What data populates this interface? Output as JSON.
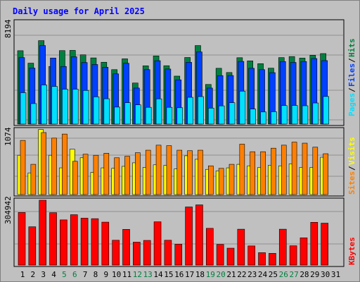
{
  "chart_data": [
    {
      "type": "bar",
      "title": "Daily usage for April 2025",
      "ylabel_top": "8194",
      "ylim": [
        0,
        10000
      ],
      "categories": [
        "1",
        "2",
        "3",
        "4",
        "5",
        "6",
        "7",
        "8",
        "9",
        "10",
        "11",
        "12",
        "13",
        "14",
        "15",
        "16",
        "17",
        "18",
        "19",
        "20",
        "21",
        "22",
        "23",
        "24",
        "25",
        "26",
        "27",
        "28",
        "29",
        "30",
        "31"
      ],
      "weekend_days": [
        "5",
        "6",
        "12",
        "13",
        "19",
        "20",
        "26",
        "27"
      ],
      "legend": [
        "Pages",
        "Files",
        "Hits"
      ],
      "series": [
        {
          "name": "Hits",
          "color": "#008040",
          "values": [
            7130,
            5920,
            8110,
            5600,
            7140,
            7160,
            6730,
            6430,
            6010,
            5290,
            6340,
            3990,
            5660,
            6620,
            5670,
            4660,
            6470,
            7630,
            3850,
            5420,
            5010,
            6450,
            6140,
            5870,
            5430,
            6460,
            6560,
            6410,
            6690,
            6850,
            0
          ]
        },
        {
          "name": "Files",
          "color": "#0040ff",
          "values": [
            6460,
            5440,
            7630,
            6420,
            5600,
            6540,
            5980,
            5790,
            5520,
            4880,
            5910,
            3500,
            5290,
            6160,
            5350,
            4300,
            6000,
            7010,
            3500,
            4710,
            4720,
            6090,
            5420,
            5290,
            5000,
            6080,
            5990,
            6080,
            6370,
            6170,
            0
          ]
        },
        {
          "name": "Pages",
          "color": "#00e0ff",
          "values": [
            3050,
            1990,
            3800,
            3660,
            3390,
            3390,
            3270,
            2650,
            2460,
            1650,
            2080,
            1870,
            1630,
            2450,
            1630,
            1590,
            2600,
            2670,
            1550,
            1770,
            2080,
            3200,
            1460,
            1180,
            1200,
            1800,
            1810,
            1780,
            2050,
            2680,
            0
          ]
        }
      ]
    },
    {
      "type": "bar",
      "legend": [
        "Sites",
        "Visits"
      ],
      "ylabel_top": "1074",
      "ylim": [
        0,
        1300
      ],
      "categories": [
        "1",
        "2",
        "3",
        "4",
        "5",
        "6",
        "7",
        "8",
        "9",
        "10",
        "11",
        "12",
        "13",
        "14",
        "15",
        "16",
        "17",
        "18",
        "19",
        "20",
        "21",
        "22",
        "23",
        "24",
        "25",
        "26",
        "27",
        "28",
        "29",
        "30",
        "31"
      ],
      "series": [
        {
          "name": "Visits",
          "color": "#ffff00",
          "values": [
            780,
            430,
            1290,
            780,
            530,
            900,
            730,
            440,
            530,
            520,
            560,
            630,
            540,
            590,
            580,
            510,
            770,
            700,
            500,
            470,
            530,
            600,
            570,
            540,
            580,
            570,
            610,
            540,
            540,
            740,
            0
          ]
        },
        {
          "name": "Sites",
          "color": "#ff8000",
          "values": [
            1074,
            600,
            1230,
            1120,
            1200,
            660,
            800,
            780,
            820,
            730,
            760,
            830,
            880,
            980,
            970,
            880,
            870,
            880,
            570,
            520,
            600,
            1000,
            850,
            850,
            920,
            980,
            1040,
            1020,
            940,
            810,
            0
          ]
        }
      ]
    },
    {
      "type": "bar",
      "legend": [
        "KBytes"
      ],
      "ylabel_top": "304942",
      "ylim": [
        0,
        380000
      ],
      "categories": [
        "1",
        "2",
        "3",
        "4",
        "5",
        "6",
        "7",
        "8",
        "9",
        "10",
        "11",
        "12",
        "13",
        "14",
        "15",
        "16",
        "17",
        "18",
        "19",
        "20",
        "21",
        "22",
        "23",
        "24",
        "25",
        "26",
        "27",
        "28",
        "29",
        "30",
        "31"
      ],
      "series": [
        {
          "name": "KBytes",
          "color": "#ff0000",
          "values": [
            305000,
            222000,
            376000,
            304000,
            262000,
            292000,
            272000,
            269000,
            249000,
            144000,
            207000,
            133000,
            143000,
            251000,
            144000,
            121000,
            337000,
            349000,
            213000,
            120000,
            98000,
            208000,
            111000,
            72000,
            68000,
            208000,
            112000,
            158000,
            248000,
            243000,
            0
          ]
        }
      ]
    }
  ]
}
